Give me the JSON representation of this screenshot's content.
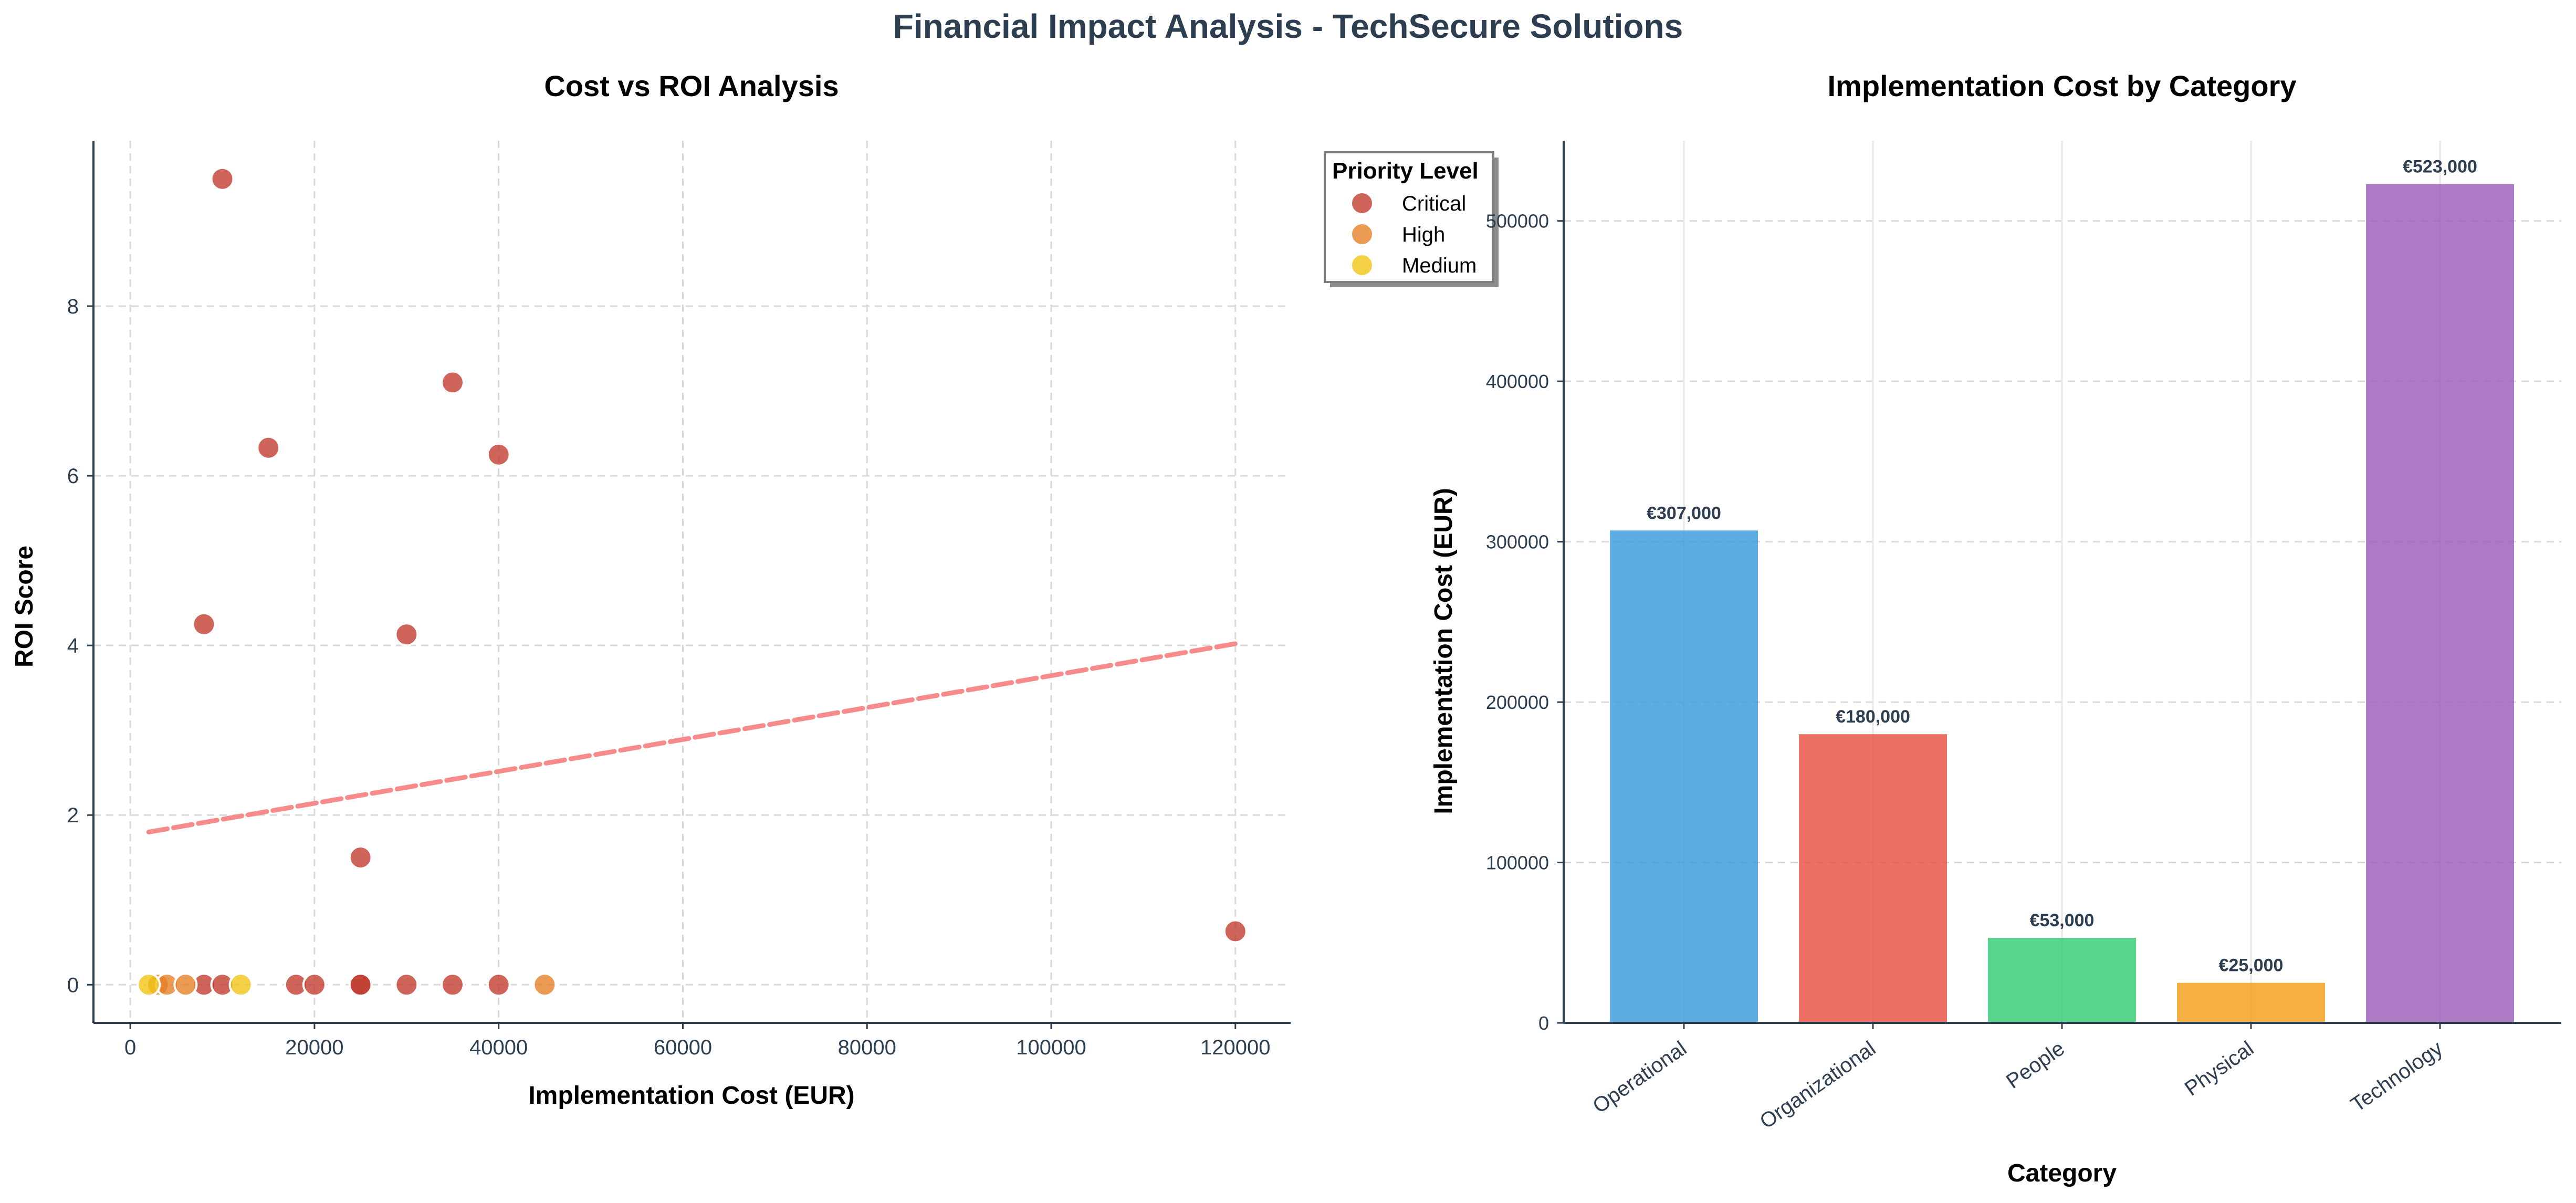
{
  "figure": {
    "suptitle": "Financial Impact Analysis - TechSecure Solutions"
  },
  "colors": {
    "title": "#2c3e50",
    "axis": "#2c3e50",
    "grid": "#d9d9d9",
    "critical": "#c0392b",
    "high": "#e67e22",
    "medium": "#f1c40f",
    "trend": "#f78b8b",
    "bars": [
      "#3498db",
      "#e74c3c",
      "#2ecc71",
      "#f39c12",
      "#9b59b6"
    ]
  },
  "chart_data": [
    {
      "type": "scatter",
      "title": "Cost vs ROI Analysis",
      "xlabel": "Implementation Cost (EUR)",
      "ylabel": "ROI Score",
      "xlim": [
        -4000,
        126000
      ],
      "ylim": [
        -0.45,
        9.95
      ],
      "xticks": [
        0,
        20000,
        40000,
        60000,
        80000,
        100000,
        120000
      ],
      "yticks": [
        0,
        2,
        4,
        6,
        8
      ],
      "grid": true,
      "legend": {
        "title": "Priority Level",
        "placement": "upper-right-outside",
        "entries": [
          "Critical",
          "High",
          "Medium"
        ]
      },
      "series": [
        {
          "name": "Critical",
          "color": "#c0392b",
          "points": [
            [
              10000,
              9.5
            ],
            [
              35000,
              7.1
            ],
            [
              15000,
              6.33
            ],
            [
              40000,
              6.25
            ],
            [
              8000,
              4.25
            ],
            [
              30000,
              4.13
            ],
            [
              25000,
              1.5
            ],
            [
              120000,
              0.63
            ],
            [
              8000,
              0
            ],
            [
              10000,
              0
            ],
            [
              18000,
              0
            ],
            [
              20000,
              0
            ],
            [
              25000,
              0
            ],
            [
              25000,
              0
            ],
            [
              30000,
              0
            ],
            [
              35000,
              0
            ],
            [
              40000,
              0
            ]
          ]
        },
        {
          "name": "High",
          "color": "#e67e22",
          "points": [
            [
              3000,
              0
            ],
            [
              4000,
              0
            ],
            [
              6000,
              0
            ],
            [
              45000,
              0
            ]
          ]
        },
        {
          "name": "Medium",
          "color": "#f1c40f",
          "points": [
            [
              2000,
              0
            ],
            [
              12000,
              0
            ]
          ]
        }
      ],
      "trend": {
        "style": "dashed",
        "from": [
          2000,
          1.8
        ],
        "to": [
          120000,
          4.02
        ]
      }
    },
    {
      "type": "bar",
      "title": "Implementation Cost by Category",
      "xlabel": "Category",
      "ylabel": "Implementation Cost (EUR)",
      "ylim": [
        0,
        550000
      ],
      "yticks": [
        0,
        100000,
        200000,
        300000,
        400000,
        500000
      ],
      "grid": true,
      "categories": [
        "Operational",
        "Organizational",
        "People",
        "Physical",
        "Technology"
      ],
      "values": [
        307000,
        180000,
        53000,
        25000,
        523000
      ],
      "value_labels": [
        "€307,000",
        "€180,000",
        "€53,000",
        "€25,000",
        "€523,000"
      ]
    }
  ]
}
